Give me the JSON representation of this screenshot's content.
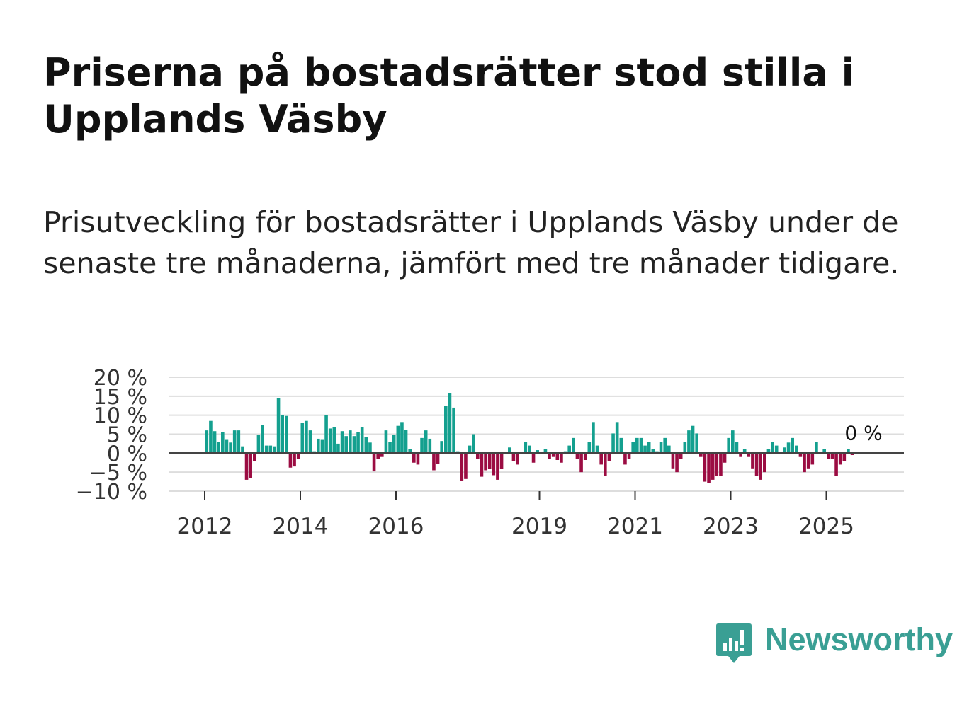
{
  "header": {
    "title": "Priserna på bostadsrätter stod stilla i Upplands Väsby",
    "subtitle": "Prisutveckling för bostadsrätter i Upplands Väsby under de senaste tre månaderna, jämfört med tre månader tidigare."
  },
  "brand": {
    "name": "Newsworthy",
    "icon": "newsworthy-logo-icon",
    "color": "#3a9f94"
  },
  "colors": {
    "positive": "#14a08f",
    "negative": "#9b0c42",
    "zero_line": "#444444",
    "grid": "#dddddd"
  },
  "chart_data": {
    "type": "bar",
    "title": "Priserna på bostadsrätter stod stilla i Upplands Väsby",
    "xlabel": "",
    "ylabel": "",
    "ylim": [
      -10,
      20
    ],
    "yticks": [
      -10,
      -5,
      0,
      5,
      10,
      15,
      20
    ],
    "ytick_labels": [
      "−10 %",
      "−5 %",
      "0 %",
      "5 %",
      "10 %",
      "15 %",
      "20 %"
    ],
    "xticks": [
      "2012",
      "2014",
      "2016",
      "2019",
      "2021",
      "2023",
      "2025"
    ],
    "start": "2012-01",
    "frequency": "monthly",
    "last_value_label": "0 %",
    "values": [
      6.0,
      8.5,
      5.8,
      3.0,
      5.5,
      3.5,
      2.8,
      6.0,
      6.0,
      1.8,
      -7.0,
      -6.5,
      -2.0,
      4.8,
      7.5,
      2.0,
      2.0,
      1.8,
      14.5,
      10.0,
      9.8,
      -3.8,
      -3.5,
      -1.5,
      8.0,
      8.5,
      6.0,
      0.5,
      3.8,
      3.5,
      10.0,
      6.5,
      6.8,
      2.5,
      5.8,
      4.5,
      6.0,
      4.5,
      5.5,
      6.8,
      4.2,
      2.8,
      -4.8,
      -1.5,
      -1.0,
      6.0,
      3.0,
      4.8,
      7.2,
      8.2,
      6.2,
      1.0,
      -2.5,
      -3.0,
      4.0,
      6.0,
      3.8,
      -4.5,
      -2.8,
      3.2,
      12.5,
      15.8,
      12.0,
      0.5,
      -7.2,
      -6.8,
      2.0,
      5.0,
      -1.5,
      -6.2,
      -4.5,
      -4.2,
      -5.8,
      -7.0,
      -4.2,
      0.2,
      1.5,
      -2.0,
      -3.0,
      0.2,
      3.0,
      2.0,
      -2.5,
      0.8,
      0.3,
      1.0,
      -1.5,
      -1.0,
      -1.8,
      -2.5,
      0.5,
      2.0,
      4.0,
      -1.5,
      -5.0,
      -1.8,
      3.0,
      8.2,
      2.0,
      -3.0,
      -6.0,
      -2.0,
      5.2,
      8.2,
      4.0,
      -3.0,
      -1.5,
      3.0,
      4.0,
      4.0,
      2.0,
      3.0,
      1.0,
      0.5,
      3.0,
      4.0,
      2.0,
      -4.0,
      -5.0,
      -1.5,
      3.0,
      6.0,
      7.2,
      5.2,
      -1.0,
      -7.5,
      -7.8,
      -7.0,
      -6.0,
      -6.0,
      -2.5,
      4.0,
      6.0,
      3.0,
      -1.0,
      1.0,
      -1.0,
      -4.0,
      -6.0,
      -7.0,
      -5.0,
      1.0,
      3.0,
      2.0,
      0.2,
      1.5,
      2.8,
      4.0,
      2.0,
      -1.0,
      -5.0,
      -4.0,
      -3.0,
      3.0,
      0.2,
      1.0,
      -1.5,
      -1.5,
      -6.0,
      -3.0,
      -2.0,
      1.0,
      -0.5
    ]
  }
}
